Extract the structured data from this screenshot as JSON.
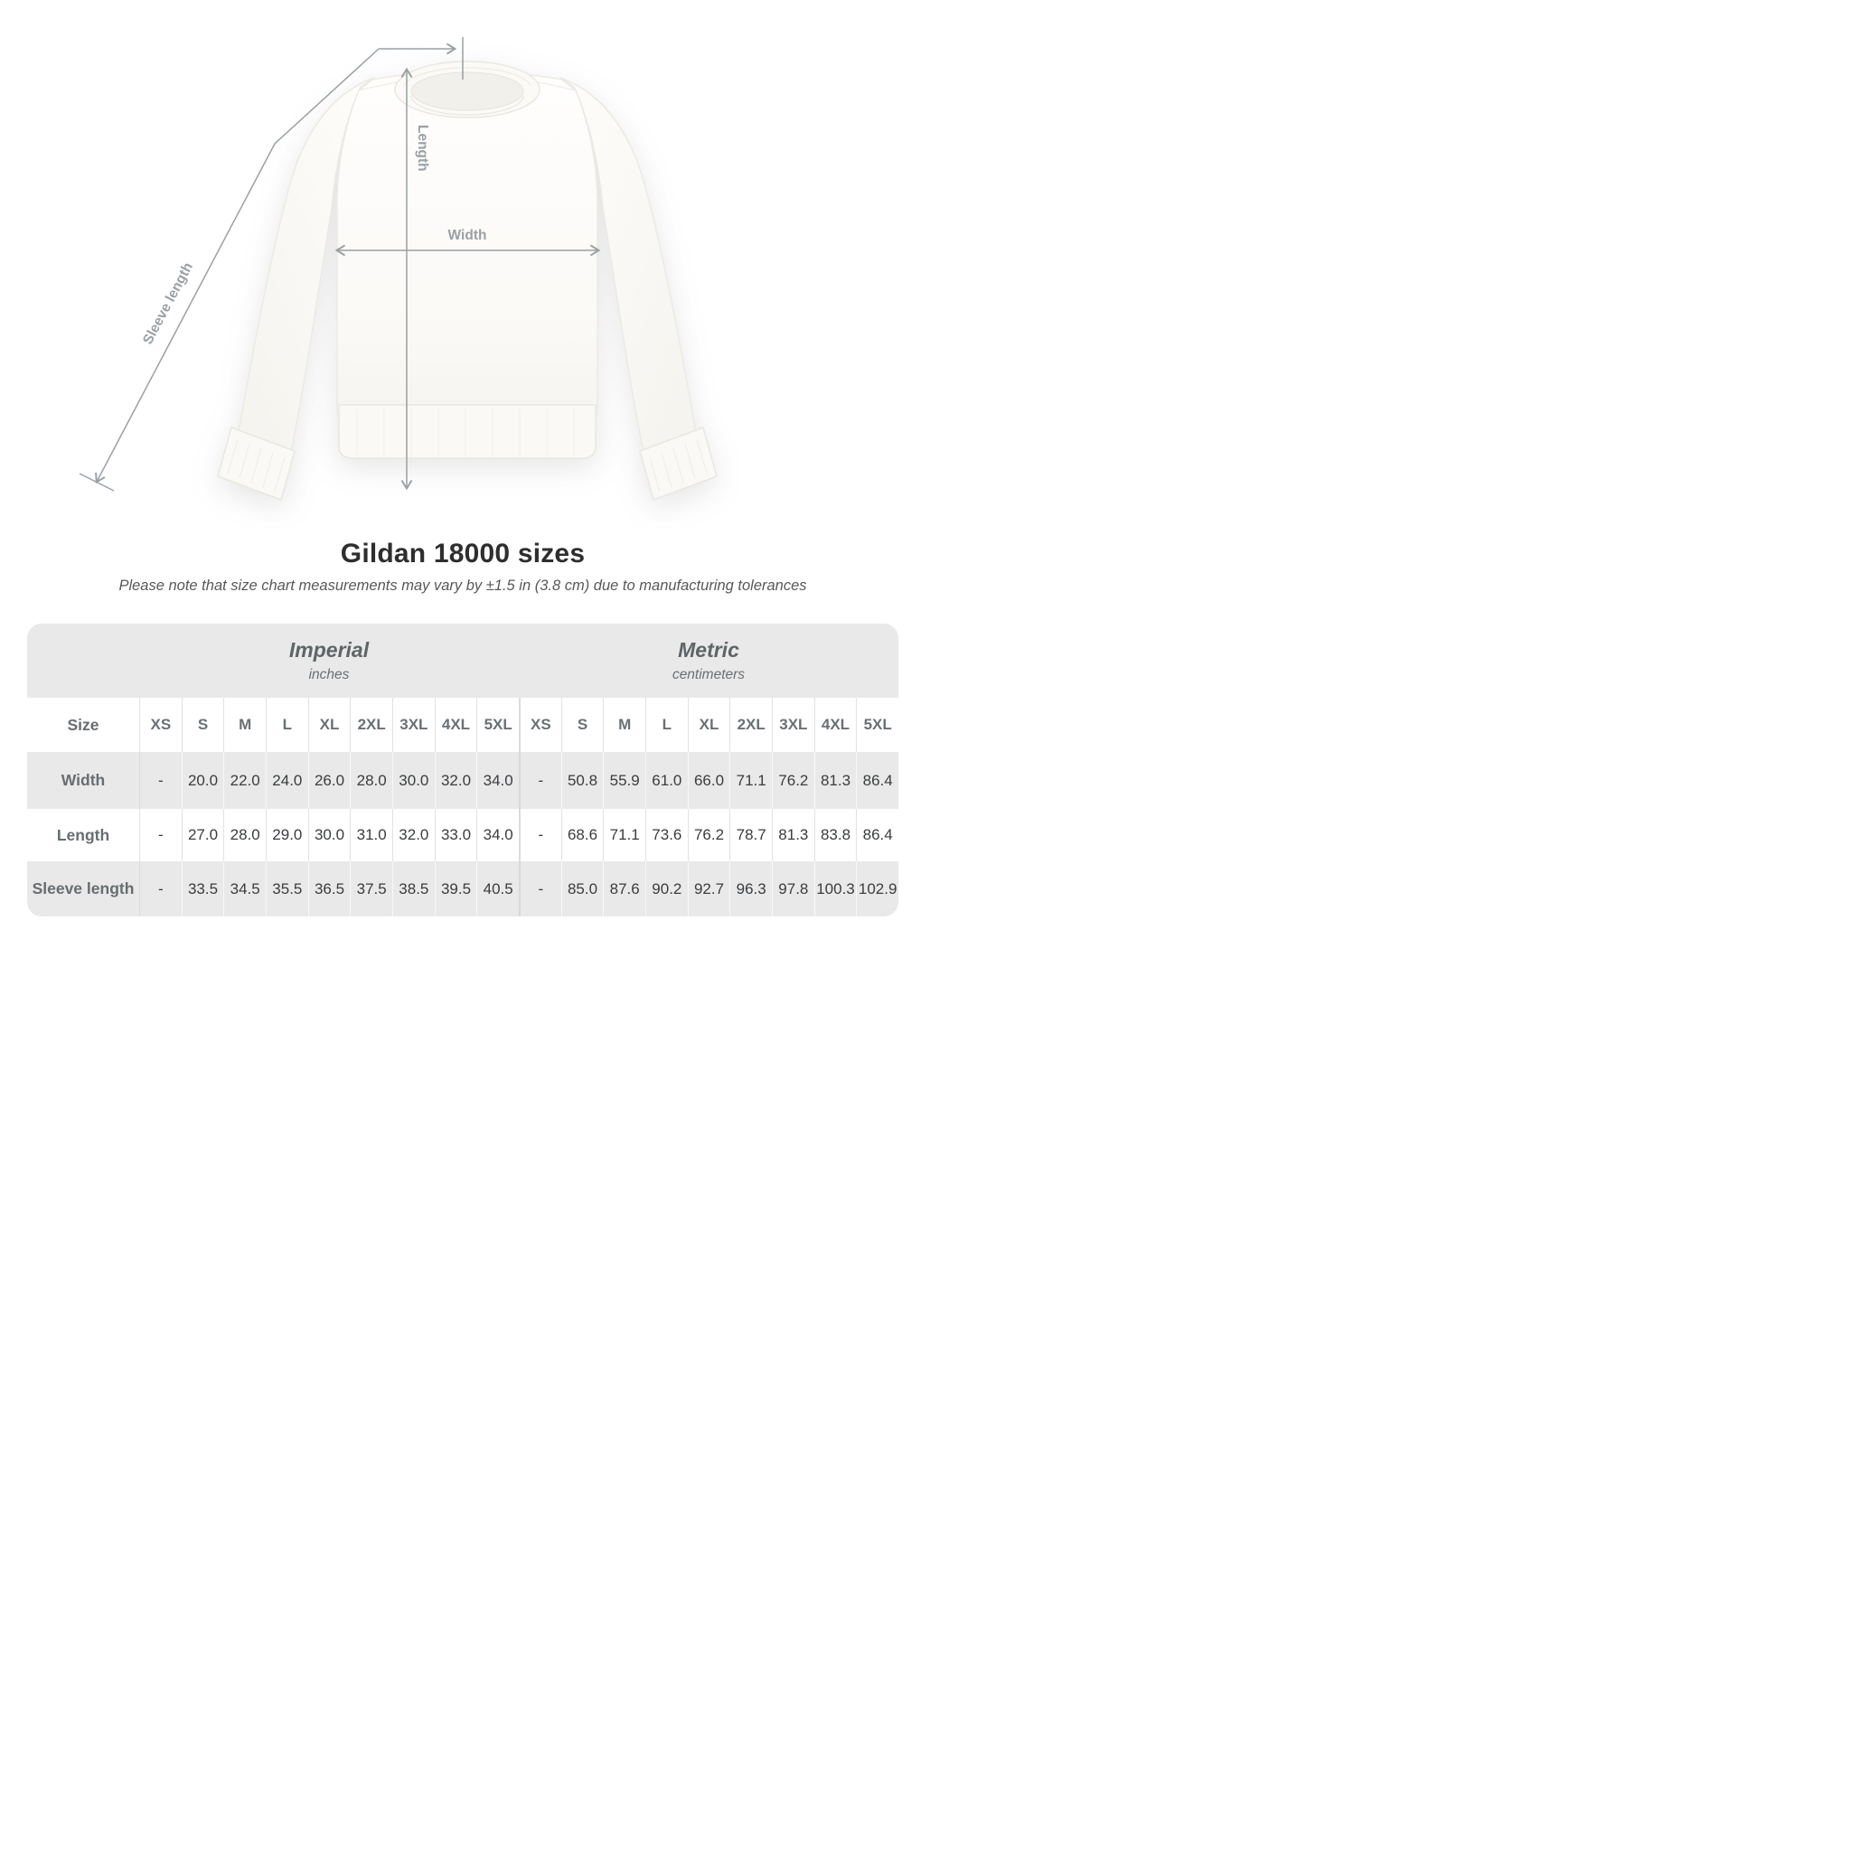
{
  "diagram": {
    "length_label": "Length",
    "width_label": "Width",
    "sleeve_label": "Sleeve length",
    "annotation_color": "#9aa0a3"
  },
  "title": "Gildan 18000 sizes",
  "subtitle": "Please note that size chart measurements may vary by ±1.5 in (3.8 cm) due to manufacturing tolerances",
  "table": {
    "size_label": "Size",
    "sizes": [
      "XS",
      "S",
      "M",
      "L",
      "XL",
      "2XL",
      "3XL",
      "4XL",
      "5XL"
    ],
    "unit_groups": [
      {
        "name": "Imperial",
        "unit": "inches"
      },
      {
        "name": "Metric",
        "unit": "centimeters"
      }
    ],
    "rows": [
      {
        "label": "Width",
        "imperial": [
          "-",
          "20.0",
          "22.0",
          "24.0",
          "26.0",
          "28.0",
          "30.0",
          "32.0",
          "34.0"
        ],
        "metric": [
          "-",
          "50.8",
          "55.9",
          "61.0",
          "66.0",
          "71.1",
          "76.2",
          "81.3",
          "86.4"
        ]
      },
      {
        "label": "Length",
        "imperial": [
          "-",
          "27.0",
          "28.0",
          "29.0",
          "30.0",
          "31.0",
          "32.0",
          "33.0",
          "34.0"
        ],
        "metric": [
          "-",
          "68.6",
          "71.1",
          "73.6",
          "76.2",
          "78.7",
          "81.3",
          "83.8",
          "86.4"
        ]
      },
      {
        "label": "Sleeve length",
        "imperial": [
          "-",
          "33.5",
          "34.5",
          "35.5",
          "36.5",
          "37.5",
          "38.5",
          "39.5",
          "40.5"
        ],
        "metric": [
          "-",
          "85.0",
          "87.6",
          "90.2",
          "92.7",
          "96.3",
          "97.8",
          "100.3",
          "102.9"
        ]
      }
    ]
  },
  "chart_data": {
    "type": "table",
    "title": "Gildan 18000 sizes",
    "note": "Please note that size chart measurements may vary by ±1.5 in (3.8 cm) due to manufacturing tolerances",
    "columns": [
      "XS",
      "S",
      "M",
      "L",
      "XL",
      "2XL",
      "3XL",
      "4XL",
      "5XL"
    ],
    "unit_groups": [
      "Imperial (inches)",
      "Metric (centimeters)"
    ],
    "rows": [
      {
        "measure": "Width",
        "imperial_in": [
          null,
          20.0,
          22.0,
          24.0,
          26.0,
          28.0,
          30.0,
          32.0,
          34.0
        ],
        "metric_cm": [
          null,
          50.8,
          55.9,
          61.0,
          66.0,
          71.1,
          76.2,
          81.3,
          86.4
        ]
      },
      {
        "measure": "Length",
        "imperial_in": [
          null,
          27.0,
          28.0,
          29.0,
          30.0,
          31.0,
          32.0,
          33.0,
          34.0
        ],
        "metric_cm": [
          null,
          68.6,
          71.1,
          73.6,
          76.2,
          78.7,
          81.3,
          83.8,
          86.4
        ]
      },
      {
        "measure": "Sleeve length",
        "imperial_in": [
          null,
          33.5,
          34.5,
          35.5,
          36.5,
          37.5,
          38.5,
          39.5,
          40.5
        ],
        "metric_cm": [
          null,
          85.0,
          87.6,
          90.2,
          92.7,
          96.3,
          97.8,
          100.3,
          102.9
        ]
      }
    ]
  }
}
